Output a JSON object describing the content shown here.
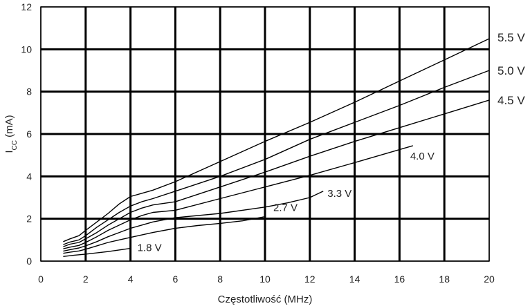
{
  "chart_data": {
    "type": "line",
    "title": "",
    "xlabel": "Częstotliwość (MHz)",
    "ylabel_main": "I",
    "ylabel_sub": "CC",
    "ylabel_unit": " (mA)",
    "xlim": [
      0,
      20
    ],
    "ylim": [
      0,
      12
    ],
    "x_ticks": [
      "0",
      "2",
      "4",
      "6",
      "8",
      "10",
      "12",
      "14",
      "16",
      "18",
      "20"
    ],
    "y_ticks": [
      "0",
      "2",
      "4",
      "6",
      "8",
      "10",
      "12"
    ],
    "grid": true,
    "legend": "inline labels at line ends",
    "series": [
      {
        "name": "5.5 V",
        "points": [
          [
            1,
            0.92
          ],
          [
            1.3,
            1.05
          ],
          [
            1.7,
            1.2
          ],
          [
            2,
            1.45
          ],
          [
            2.5,
            1.85
          ],
          [
            3,
            2.25
          ],
          [
            3.5,
            2.7
          ],
          [
            4,
            3.05
          ],
          [
            4.5,
            3.2
          ],
          [
            5,
            3.35
          ],
          [
            6,
            3.75
          ],
          [
            8,
            4.7
          ],
          [
            10,
            5.65
          ],
          [
            12,
            6.55
          ],
          [
            14,
            7.5
          ],
          [
            16,
            8.5
          ],
          [
            18,
            9.5
          ],
          [
            20,
            10.5
          ]
        ]
      },
      {
        "name": "5.0 V",
        "points": [
          [
            1,
            0.78
          ],
          [
            1.3,
            0.9
          ],
          [
            1.7,
            1.0
          ],
          [
            2,
            1.2
          ],
          [
            2.5,
            1.6
          ],
          [
            3,
            1.95
          ],
          [
            3.5,
            2.3
          ],
          [
            4,
            2.6
          ],
          [
            4.5,
            2.8
          ],
          [
            5,
            2.95
          ],
          [
            6,
            3.3
          ],
          [
            8,
            4.0
          ],
          [
            10,
            4.8
          ],
          [
            12,
            5.75
          ],
          [
            14,
            6.55
          ],
          [
            16,
            7.35
          ],
          [
            18,
            8.2
          ],
          [
            20,
            9.0
          ]
        ]
      },
      {
        "name": "4.5 V",
        "points": [
          [
            1,
            0.68
          ],
          [
            1.3,
            0.8
          ],
          [
            1.7,
            0.88
          ],
          [
            2,
            1.05
          ],
          [
            2.5,
            1.35
          ],
          [
            3,
            1.7
          ],
          [
            3.5,
            2.0
          ],
          [
            4,
            2.3
          ],
          [
            4.5,
            2.5
          ],
          [
            5,
            2.65
          ],
          [
            6,
            2.8
          ],
          [
            8,
            3.5
          ],
          [
            10,
            4.2
          ],
          [
            12,
            4.95
          ],
          [
            14,
            5.65
          ],
          [
            16,
            6.3
          ],
          [
            18,
            6.95
          ],
          [
            20,
            7.6
          ]
        ]
      },
      {
        "name": "4.0 V",
        "points": [
          [
            1,
            0.58
          ],
          [
            1.3,
            0.66
          ],
          [
            1.7,
            0.74
          ],
          [
            2,
            0.88
          ],
          [
            2.5,
            1.15
          ],
          [
            3,
            1.45
          ],
          [
            3.5,
            1.7
          ],
          [
            4,
            1.95
          ],
          [
            4.5,
            2.15
          ],
          [
            5,
            2.3
          ],
          [
            6,
            2.4
          ],
          [
            8,
            2.95
          ],
          [
            10,
            3.5
          ],
          [
            12,
            4.05
          ],
          [
            14,
            4.65
          ],
          [
            16.6,
            5.45
          ]
        ]
      },
      {
        "name": "3.3 V",
        "points": [
          [
            1,
            0.47
          ],
          [
            1.3,
            0.54
          ],
          [
            1.7,
            0.62
          ],
          [
            2,
            0.72
          ],
          [
            2.5,
            0.92
          ],
          [
            3,
            1.15
          ],
          [
            3.5,
            1.35
          ],
          [
            4,
            1.55
          ],
          [
            4.5,
            1.7
          ],
          [
            5,
            1.85
          ],
          [
            6,
            2.05
          ],
          [
            8,
            2.25
          ],
          [
            10,
            2.55
          ],
          [
            11,
            2.75
          ],
          [
            12,
            3.0
          ],
          [
            12.6,
            3.3
          ]
        ]
      },
      {
        "name": "2.7 V",
        "points": [
          [
            1,
            0.37
          ],
          [
            1.3,
            0.42
          ],
          [
            1.7,
            0.48
          ],
          [
            2,
            0.56
          ],
          [
            2.5,
            0.72
          ],
          [
            3,
            0.88
          ],
          [
            3.5,
            1.0
          ],
          [
            4,
            1.12
          ],
          [
            5,
            1.35
          ],
          [
            6,
            1.55
          ],
          [
            7,
            1.68
          ],
          [
            8,
            1.78
          ],
          [
            9,
            1.9
          ],
          [
            10,
            2.1
          ]
        ]
      },
      {
        "name": "1.8 V",
        "points": [
          [
            1,
            0.22
          ],
          [
            1.5,
            0.28
          ],
          [
            2,
            0.33
          ],
          [
            3,
            0.45
          ],
          [
            4,
            0.6
          ]
        ]
      }
    ]
  }
}
